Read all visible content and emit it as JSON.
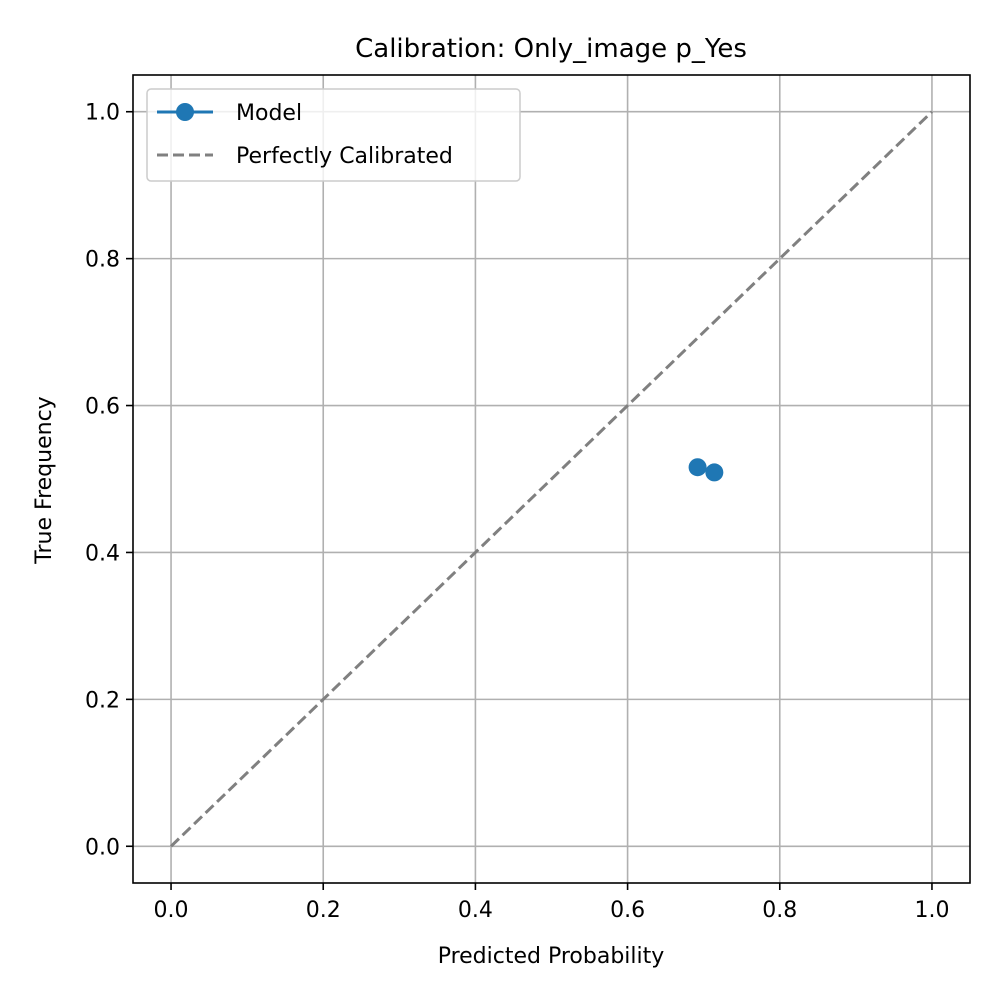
{
  "chart_data": {
    "type": "line",
    "title": "Calibration: Only_image p_Yes",
    "xlabel": "Predicted Probability",
    "ylabel": "True Frequency",
    "xlim": [
      -0.05,
      1.05
    ],
    "ylim": [
      -0.05,
      1.05
    ],
    "xticks": [
      0.0,
      0.2,
      0.4,
      0.6,
      0.8,
      1.0
    ],
    "yticks": [
      0.0,
      0.2,
      0.4,
      0.6,
      0.8,
      1.0
    ],
    "xtick_labels": [
      "0.0",
      "0.2",
      "0.4",
      "0.6",
      "0.8",
      "1.0"
    ],
    "ytick_labels": [
      "0.0",
      "0.2",
      "0.4",
      "0.6",
      "0.8",
      "1.0"
    ],
    "grid": true,
    "legend_position": "top-left",
    "series": [
      {
        "name": "Model",
        "style": "line-with-circle-markers",
        "color": "#1f77b4",
        "x": [
          0.692,
          0.714
        ],
        "y": [
          0.516,
          0.509
        ]
      },
      {
        "name": "Perfectly Calibrated",
        "style": "dashed",
        "color": "#808080",
        "x": [
          0.0,
          1.0
        ],
        "y": [
          0.0,
          1.0
        ]
      }
    ]
  }
}
